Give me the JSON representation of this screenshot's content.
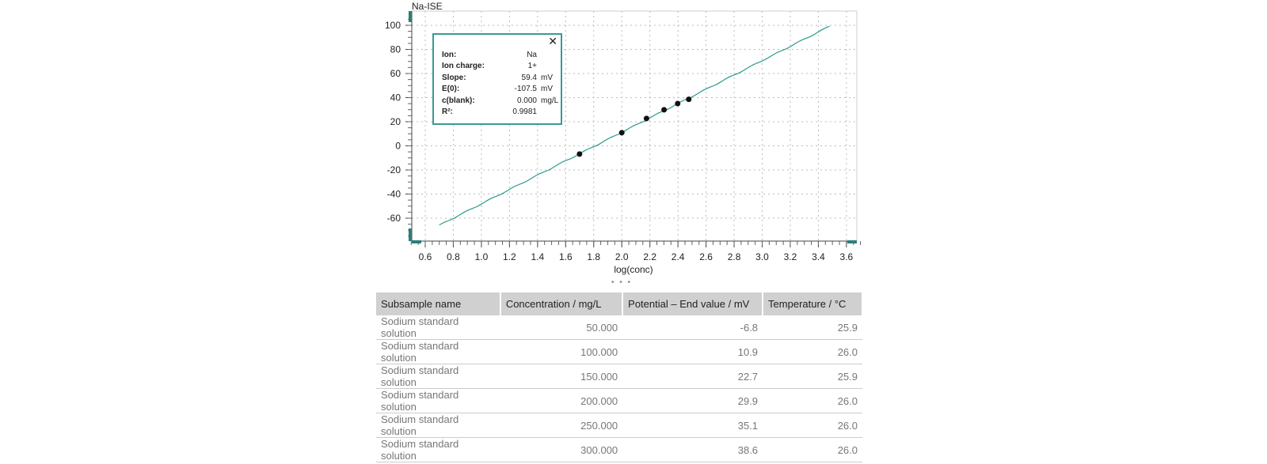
{
  "chart_data": {
    "type": "scatter",
    "title": "Na-ISE",
    "xlabel": "log(conc)",
    "ylabel": "",
    "xlim": [
      0.5,
      3.7
    ],
    "ylim": [
      -80,
      110
    ],
    "xticks": [
      "0.6",
      "0.8",
      "1.0",
      "1.2",
      "1.4",
      "1.6",
      "1.8",
      "2.0",
      "2.2",
      "2.4",
      "2.6",
      "2.8",
      "3.0",
      "3.2",
      "3.4",
      "3.6"
    ],
    "yticks": [
      "100",
      "80",
      "60",
      "40",
      "20",
      "0",
      "-20",
      "-40",
      "-60"
    ],
    "grid": true,
    "points": {
      "x": [
        1.699,
        2.0,
        2.176,
        2.301,
        2.398,
        2.477
      ],
      "y": [
        -6.8,
        10.9,
        22.7,
        29.9,
        35.1,
        38.6
      ]
    },
    "fit_line": {
      "x": [
        0.7,
        3.48
      ],
      "slope": 59.4,
      "intercept": -107.5,
      "color": "#2a9a90"
    }
  },
  "legend": {
    "rows": [
      {
        "key": "Ion:",
        "value": "Na",
        "unit": ""
      },
      {
        "key": "Ion charge:",
        "value": "1+",
        "unit": ""
      },
      {
        "key": "Slope:",
        "value": "59.4",
        "unit": "mV"
      },
      {
        "key": "E(0):",
        "value": "-107.5",
        "unit": "mV"
      },
      {
        "key": "c(blank):",
        "value": "0.000",
        "unit": "mg/L"
      },
      {
        "key": "R²:",
        "value": "0.9981",
        "unit": ""
      }
    ],
    "close": "✕"
  },
  "splitter": "• • •",
  "table": {
    "headers": [
      "Subsample name",
      "Concentration / mg/L",
      "Potential – End value / mV",
      "Temperature / °C"
    ],
    "rows": [
      [
        "Sodium standard solution",
        "50.000",
        "-6.8",
        "25.9"
      ],
      [
        "Sodium standard solution",
        "100.000",
        "10.9",
        "26.0"
      ],
      [
        "Sodium standard solution",
        "150.000",
        "22.7",
        "25.9"
      ],
      [
        "Sodium standard solution",
        "200.000",
        "29.9",
        "26.0"
      ],
      [
        "Sodium standard solution",
        "250.000",
        "35.1",
        "26.0"
      ],
      [
        "Sodium standard solution",
        "300.000",
        "38.6",
        "26.0"
      ]
    ]
  }
}
